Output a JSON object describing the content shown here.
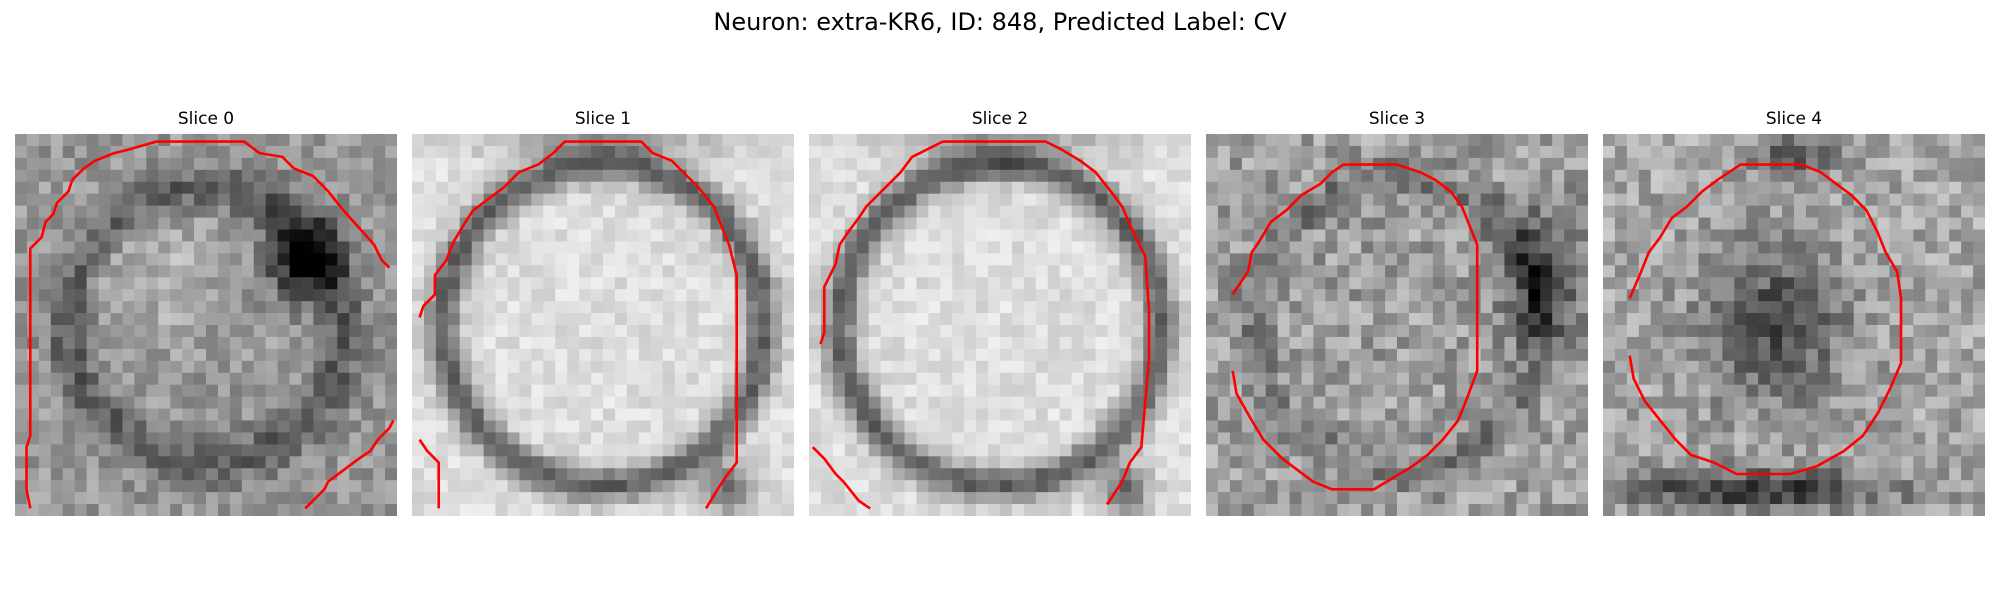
{
  "figure": {
    "title": "Neuron: extra-KR6, ID: 848, Predicted Label: CV",
    "contour_color": "#ff0000"
  },
  "panels": [
    {
      "title": "Slice 0",
      "background_pattern": "dark-rim-blob",
      "contour_polygons": [
        [
          [
            0.04,
            0.98
          ],
          [
            0.03,
            0.93
          ],
          [
            0.03,
            0.82
          ],
          [
            0.04,
            0.79
          ],
          [
            0.04,
            0.3
          ],
          [
            0.07,
            0.27
          ],
          [
            0.08,
            0.23
          ],
          [
            0.1,
            0.21
          ],
          [
            0.11,
            0.18
          ],
          [
            0.14,
            0.15
          ],
          [
            0.15,
            0.12
          ],
          [
            0.18,
            0.09
          ],
          [
            0.21,
            0.07
          ],
          [
            0.26,
            0.05
          ],
          [
            0.3,
            0.04
          ],
          [
            0.37,
            0.02
          ],
          [
            0.6,
            0.02
          ],
          [
            0.64,
            0.05
          ],
          [
            0.7,
            0.06
          ],
          [
            0.73,
            0.09
          ],
          [
            0.78,
            0.11
          ],
          [
            0.82,
            0.15
          ],
          [
            0.86,
            0.2
          ],
          [
            0.94,
            0.29
          ],
          [
            0.96,
            0.33
          ],
          [
            0.98,
            0.35
          ]
        ],
        [
          [
            0.76,
            0.98
          ],
          [
            0.81,
            0.93
          ],
          [
            0.82,
            0.91
          ],
          [
            0.86,
            0.88
          ],
          [
            0.9,
            0.85
          ],
          [
            0.93,
            0.83
          ],
          [
            0.95,
            0.8
          ],
          [
            0.98,
            0.77
          ],
          [
            0.99,
            0.75
          ]
        ]
      ]
    },
    {
      "title": "Slice 1",
      "background_pattern": "bright-rim",
      "contour_polygons": [
        [
          [
            0.02,
            0.48
          ],
          [
            0.03,
            0.45
          ],
          [
            0.06,
            0.42
          ],
          [
            0.06,
            0.37
          ],
          [
            0.09,
            0.33
          ],
          [
            0.11,
            0.28
          ],
          [
            0.14,
            0.23
          ],
          [
            0.16,
            0.2
          ],
          [
            0.2,
            0.17
          ],
          [
            0.24,
            0.14
          ],
          [
            0.28,
            0.1
          ],
          [
            0.33,
            0.08
          ],
          [
            0.37,
            0.05
          ],
          [
            0.4,
            0.02
          ],
          [
            0.6,
            0.02
          ],
          [
            0.63,
            0.05
          ],
          [
            0.68,
            0.07
          ],
          [
            0.72,
            0.11
          ],
          [
            0.75,
            0.14
          ],
          [
            0.79,
            0.19
          ],
          [
            0.81,
            0.24
          ],
          [
            0.83,
            0.29
          ],
          [
            0.85,
            0.37
          ],
          [
            0.85,
            0.86
          ],
          [
            0.82,
            0.9
          ],
          [
            0.8,
            0.93
          ],
          [
            0.77,
            0.98
          ]
        ],
        [
          [
            0.02,
            0.8
          ],
          [
            0.04,
            0.83
          ],
          [
            0.07,
            0.86
          ],
          [
            0.07,
            0.98
          ]
        ]
      ]
    },
    {
      "title": "Slice 2",
      "background_pattern": "bright-rim",
      "contour_polygons": [
        [
          [
            0.03,
            0.55
          ],
          [
            0.04,
            0.52
          ],
          [
            0.04,
            0.4
          ],
          [
            0.07,
            0.34
          ],
          [
            0.08,
            0.29
          ],
          [
            0.1,
            0.26
          ],
          [
            0.13,
            0.22
          ],
          [
            0.15,
            0.19
          ],
          [
            0.18,
            0.16
          ],
          [
            0.21,
            0.13
          ],
          [
            0.24,
            0.1
          ],
          [
            0.27,
            0.06
          ],
          [
            0.31,
            0.04
          ],
          [
            0.35,
            0.02
          ],
          [
            0.62,
            0.02
          ],
          [
            0.66,
            0.04
          ],
          [
            0.71,
            0.07
          ],
          [
            0.75,
            0.1
          ],
          [
            0.79,
            0.15
          ],
          [
            0.82,
            0.19
          ],
          [
            0.85,
            0.26
          ],
          [
            0.88,
            0.32
          ],
          [
            0.89,
            0.46
          ],
          [
            0.89,
            0.59
          ],
          [
            0.87,
            0.82
          ],
          [
            0.84,
            0.86
          ],
          [
            0.82,
            0.91
          ],
          [
            0.78,
            0.97
          ]
        ],
        [
          [
            0.01,
            0.82
          ],
          [
            0.04,
            0.85
          ],
          [
            0.07,
            0.89
          ],
          [
            0.09,
            0.91
          ],
          [
            0.13,
            0.96
          ],
          [
            0.16,
            0.98
          ]
        ]
      ]
    },
    {
      "title": "Slice 3",
      "background_pattern": "textured-cell",
      "contour_polygons": [
        [
          [
            0.07,
            0.42
          ],
          [
            0.11,
            0.36
          ],
          [
            0.12,
            0.31
          ],
          [
            0.14,
            0.28
          ],
          [
            0.17,
            0.23
          ],
          [
            0.21,
            0.2
          ],
          [
            0.25,
            0.16
          ],
          [
            0.3,
            0.13
          ],
          [
            0.33,
            0.1
          ],
          [
            0.36,
            0.08
          ],
          [
            0.5,
            0.08
          ],
          [
            0.56,
            0.1
          ],
          [
            0.6,
            0.12
          ],
          [
            0.64,
            0.15
          ],
          [
            0.67,
            0.19
          ],
          [
            0.69,
            0.24
          ],
          [
            0.71,
            0.29
          ],
          [
            0.71,
            0.43
          ],
          [
            0.71,
            0.62
          ],
          [
            0.68,
            0.7
          ],
          [
            0.66,
            0.75
          ],
          [
            0.62,
            0.8
          ],
          [
            0.58,
            0.84
          ],
          [
            0.54,
            0.87
          ],
          [
            0.49,
            0.9
          ],
          [
            0.44,
            0.93
          ],
          [
            0.33,
            0.93
          ],
          [
            0.28,
            0.91
          ],
          [
            0.24,
            0.88
          ],
          [
            0.2,
            0.85
          ],
          [
            0.15,
            0.8
          ],
          [
            0.12,
            0.75
          ],
          [
            0.08,
            0.68
          ],
          [
            0.07,
            0.62
          ]
        ]
      ]
    },
    {
      "title": "Slice 4",
      "background_pattern": "dark-core",
      "contour_polygons": [
        [
          [
            0.07,
            0.43
          ],
          [
            0.1,
            0.36
          ],
          [
            0.12,
            0.31
          ],
          [
            0.15,
            0.27
          ],
          [
            0.18,
            0.22
          ],
          [
            0.22,
            0.19
          ],
          [
            0.26,
            0.15
          ],
          [
            0.3,
            0.12
          ],
          [
            0.33,
            0.1
          ],
          [
            0.36,
            0.08
          ],
          [
            0.52,
            0.08
          ],
          [
            0.57,
            0.1
          ],
          [
            0.61,
            0.13
          ],
          [
            0.65,
            0.16
          ],
          [
            0.69,
            0.2
          ],
          [
            0.72,
            0.26
          ],
          [
            0.74,
            0.31
          ],
          [
            0.77,
            0.36
          ],
          [
            0.78,
            0.43
          ],
          [
            0.78,
            0.6
          ],
          [
            0.75,
            0.67
          ],
          [
            0.72,
            0.73
          ],
          [
            0.68,
            0.79
          ],
          [
            0.63,
            0.83
          ],
          [
            0.56,
            0.87
          ],
          [
            0.49,
            0.89
          ],
          [
            0.35,
            0.89
          ],
          [
            0.29,
            0.86
          ],
          [
            0.23,
            0.84
          ],
          [
            0.19,
            0.8
          ],
          [
            0.15,
            0.75
          ],
          [
            0.11,
            0.7
          ],
          [
            0.08,
            0.64
          ],
          [
            0.07,
            0.58
          ]
        ]
      ]
    }
  ]
}
